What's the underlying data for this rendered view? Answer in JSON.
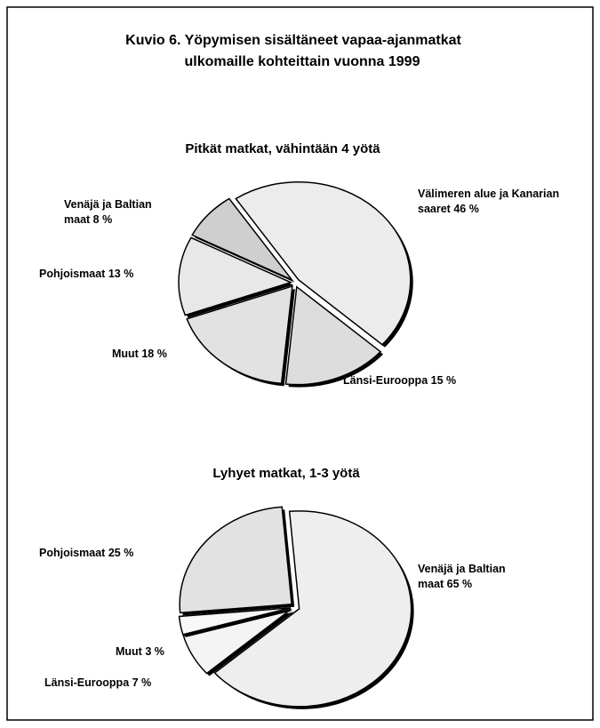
{
  "title_lines": [
    "Kuvio 6.  Yöpymisen sisältäneet vapaa-ajanmatkat",
    "ulkomaille kohteittain vuonna 1999"
  ],
  "chart_data": [
    {
      "type": "pie",
      "title": "Pitkät matkat, vähintään 4 yötä",
      "categories": [
        "Välimeren alue ja Kanarian saaret",
        "Länsi-Eurooppa",
        "Muut",
        "Pohjoismaat",
        "Venäjä ja Baltian maat"
      ],
      "values": [
        46,
        15,
        18,
        13,
        8
      ],
      "value_labels": [
        "46 %",
        "15 %",
        "18 %",
        "13 %",
        "8 %"
      ],
      "colors": [
        "#ececec",
        "#dddddd",
        "#e2e2e2",
        "#e8e8e8",
        "#cfcfcf"
      ]
    },
    {
      "type": "pie",
      "title": "Lyhyet matkat, 1-3 yötä",
      "categories": [
        "Venäjä ja Baltian maat",
        "Länsi-Eurooppa",
        "Muut",
        "Pohjoismaat"
      ],
      "values": [
        65,
        7,
        3,
        25
      ],
      "value_labels": [
        "65 %",
        "7 %",
        "3 %",
        "25 %"
      ],
      "colors": [
        "#eeeeee",
        "#f4f4f4",
        "#f8f8f8",
        "#e2e2e2"
      ]
    }
  ]
}
